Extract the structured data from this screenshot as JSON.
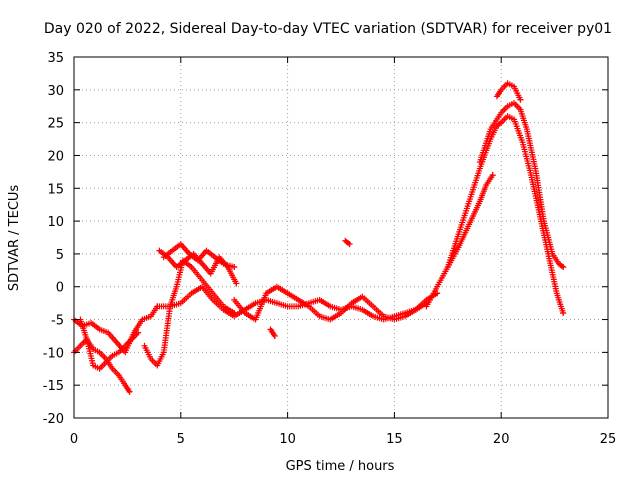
{
  "chart_data": {
    "type": "scatter",
    "title": "Day 020 of 2022, Sidereal Day-to-day VTEC variation (SDTVAR) for receiver py01",
    "xlabel": "GPS time / hours",
    "ylabel": "SDTVAR / TECUs",
    "xlim": [
      0,
      25
    ],
    "ylim": [
      -20,
      35
    ],
    "xticks": [
      0,
      5,
      10,
      15,
      20,
      25
    ],
    "yticks": [
      -20,
      -15,
      -10,
      -5,
      0,
      5,
      10,
      15,
      20,
      25,
      30,
      35
    ],
    "grid": true,
    "marker": "+",
    "series_color": "#ff0000",
    "series": [
      {
        "name": "track-a",
        "x": [
          0,
          0.4,
          0.8,
          1.2,
          1.6,
          2.0,
          2.4,
          2.8,
          3.2,
          3.6,
          3.9
        ],
        "y": [
          -5,
          -6,
          -5.5,
          -6.5,
          -7,
          -8.5,
          -10,
          -7,
          -5,
          -4.5,
          -3
        ]
      },
      {
        "name": "track-b",
        "x": [
          0,
          0.3,
          0.6,
          0.9,
          1.2,
          1.5,
          1.8,
          2.1,
          2.4,
          2.6
        ],
        "y": [
          -10,
          -9,
          -8,
          -9.5,
          -10,
          -11,
          -12.5,
          -13.5,
          -15,
          -16
        ]
      },
      {
        "name": "track-c",
        "x": [
          0.3,
          0.6,
          0.9,
          1.2,
          1.5,
          1.8,
          2.1,
          2.4,
          2.7,
          3.0
        ],
        "y": [
          -5,
          -8,
          -12,
          -12.5,
          -11.5,
          -10.5,
          -10,
          -9,
          -8,
          -7
        ]
      },
      {
        "name": "track-d",
        "x": [
          3.3,
          3.6,
          3.9,
          4.2,
          4.5,
          4.8,
          5.1,
          5.5,
          6.0,
          6.5,
          7.0,
          7.5
        ],
        "y": [
          -9,
          -11,
          -12,
          -10,
          -3,
          0,
          4,
          3,
          1,
          -1,
          -3,
          -4
        ]
      },
      {
        "name": "track-e",
        "x": [
          4.0,
          4.4,
          4.8,
          5.2,
          5.6,
          6.0,
          6.4,
          6.8,
          7.2,
          7.6
        ],
        "y": [
          5.5,
          4.5,
          3,
          4,
          5,
          3.5,
          2,
          4.5,
          3,
          0.5
        ]
      },
      {
        "name": "track-f",
        "x": [
          4.2,
          4.6,
          5.0,
          5.4,
          5.8,
          6.2,
          6.6,
          7.0,
          7.5
        ],
        "y": [
          4.5,
          5.5,
          6.5,
          5,
          4,
          5.5,
          4.5,
          3.5,
          3
        ]
      },
      {
        "name": "track-g",
        "x": [
          4.0,
          4.5,
          5.0,
          5.5,
          6.0,
          6.5,
          7.0,
          7.5,
          8.0,
          8.5,
          9.0,
          9.5,
          10.0,
          10.5,
          11.0,
          11.5,
          12.0,
          12.5,
          13.0,
          13.5,
          14.0,
          14.5,
          15.0,
          15.5,
          16.0,
          16.5,
          17.0
        ],
        "y": [
          -3,
          -3,
          -2.5,
          -1,
          0,
          -2,
          -3.5,
          -4.5,
          -3.5,
          -2.5,
          -2,
          -2.5,
          -3,
          -3,
          -2.5,
          -2,
          -3,
          -3.5,
          -3,
          -3.5,
          -4.5,
          -5,
          -4.5,
          -4,
          -3.5,
          -2,
          -1
        ]
      },
      {
        "name": "track-h",
        "x": [
          7.5,
          8.0,
          8.5,
          9.0,
          9.5,
          10.0,
          10.5,
          11.0,
          11.5,
          12.0,
          12.5,
          13.0,
          13.5,
          14.0,
          14.5,
          15.0,
          15.5,
          16.0,
          16.5
        ],
        "y": [
          -2,
          -4,
          -5,
          -1,
          0,
          -1,
          -2,
          -3,
          -4.5,
          -5,
          -4,
          -2.5,
          -1.5,
          -3,
          -4.5,
          -5,
          -4.5,
          -3.5,
          -2.5
        ]
      },
      {
        "name": "track-i",
        "x": [
          9.2,
          9.4
        ],
        "y": [
          -6.5,
          -7.5
        ]
      },
      {
        "name": "track-j",
        "x": [
          12.7,
          12.9
        ],
        "y": [
          7,
          6.5
        ]
      },
      {
        "name": "track-k",
        "x": [
          16.5,
          17.0,
          17.5,
          18.0,
          18.5,
          19.0,
          19.5,
          19.8,
          20.0,
          20.3,
          20.6,
          21.0,
          21.4,
          21.8,
          22.2,
          22.6,
          22.9
        ],
        "y": [
          -3,
          0,
          3,
          8,
          13,
          18,
          22.5,
          24.5,
          25,
          26,
          25.5,
          22,
          17,
          11,
          5,
          -1,
          -4
        ]
      },
      {
        "name": "track-l",
        "x": [
          17.5,
          18.0,
          18.5,
          19.0,
          19.3,
          19.6
        ],
        "y": [
          3,
          6,
          9.5,
          13,
          15.5,
          17
        ]
      },
      {
        "name": "track-m",
        "x": [
          19.8,
          20.0,
          20.3,
          20.6,
          20.9
        ],
        "y": [
          29,
          30,
          31,
          30.5,
          28.5
        ]
      },
      {
        "name": "track-n",
        "x": [
          19.0,
          19.5,
          20.0,
          20.3,
          20.6,
          20.9,
          21.2,
          21.6,
          22.0,
          22.4,
          22.7,
          22.9
        ],
        "y": [
          19,
          24,
          26.5,
          27.5,
          28,
          27,
          24,
          18,
          10,
          5,
          3.5,
          3
        ]
      }
    ]
  }
}
